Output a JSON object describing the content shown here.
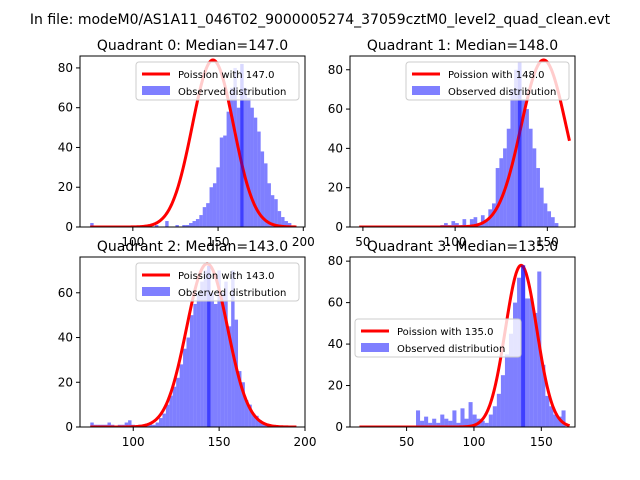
{
  "figure": {
    "suptitle": "In file: modeM0/AS1A11_046T02_9000005274_37059cztM0_level2_quad_clean.evt"
  },
  "colors": {
    "hist": "#0000ff",
    "curve": "#ff0000"
  },
  "chart_data": [
    {
      "type": "bar",
      "title": "Quadrant 0: Median=147.0",
      "xlim": [
        69,
        201
      ],
      "ylim": [
        0,
        86
      ],
      "xticks": [
        100,
        150,
        200
      ],
      "yticks": [
        0,
        20,
        40,
        60,
        80
      ],
      "legend": {
        "position": "top-right",
        "entries": [
          "Poission with 147.0",
          "Observed distribution"
        ]
      },
      "hist": {
        "x0": 75,
        "width": 2,
        "values": [
          2,
          0,
          0,
          0,
          0,
          0,
          0,
          0,
          0,
          0,
          0,
          0,
          0,
          0,
          0,
          0,
          0,
          0,
          0,
          1,
          0,
          0,
          3,
          0,
          0,
          1,
          0,
          1,
          1,
          2,
          3,
          4,
          6,
          10,
          12,
          20,
          22,
          30,
          45,
          46,
          58,
          70,
          80,
          60,
          82,
          70,
          65,
          60,
          55,
          48,
          38,
          32,
          22,
          16,
          14,
          8,
          5,
          3,
          2,
          0,
          0
        ],
        "highlight": {
          "index": 44,
          "value": 82
        }
      },
      "curve": {
        "lambda": 147.0,
        "peak": 84,
        "x": [
          75,
          196
        ]
      }
    },
    {
      "type": "bar",
      "title": "Quadrant 1: Median=148.0",
      "xlim": [
        43,
        165
      ],
      "ylim": [
        0,
        87
      ],
      "xticks": [
        50,
        100,
        150
      ],
      "yticks": [
        0,
        20,
        40,
        60,
        80
      ],
      "legend": {
        "position": "top-right",
        "entries": [
          "Poission with 148.0",
          "Observed distribution"
        ]
      },
      "hist": {
        "x0": 48,
        "width": 2,
        "values": [
          0,
          0,
          0,
          0,
          0,
          0,
          0,
          0,
          0,
          0,
          0,
          0,
          0,
          0,
          0,
          0,
          0,
          0,
          0,
          0,
          0,
          0,
          1,
          2,
          1,
          3,
          2,
          1,
          4,
          0,
          4,
          5,
          2,
          6,
          3,
          9,
          12,
          30,
          35,
          40,
          50,
          70,
          80,
          84,
          65,
          60,
          50,
          40,
          30,
          20,
          12,
          8,
          5,
          2
        ],
        "highlight": {
          "index": 43,
          "value": 84
        }
      },
      "curve": {
        "lambda": 148.0,
        "peak": 85,
        "x": [
          48,
          162
        ]
      }
    },
    {
      "type": "bar",
      "title": "Quadrant 2: Median=143.0",
      "xlim": [
        69,
        200
      ],
      "ylim": [
        0,
        76
      ],
      "xticks": [
        100,
        150,
        200
      ],
      "yticks": [
        0,
        20,
        40,
        60
      ],
      "legend": {
        "position": "top-right",
        "entries": [
          "Poission with 143.0",
          "Observed distribution"
        ]
      },
      "hist": {
        "x0": 75,
        "width": 2,
        "values": [
          2,
          1,
          1,
          1,
          1,
          2,
          1,
          0,
          1,
          1,
          2,
          3,
          1,
          0,
          1,
          0,
          1,
          2,
          1,
          2,
          4,
          6,
          10,
          14,
          18,
          22,
          28,
          35,
          40,
          50,
          55,
          60,
          65,
          70,
          72,
          60,
          55,
          70,
          60,
          65,
          45,
          70,
          48,
          25,
          20,
          12,
          10,
          6,
          5,
          3,
          2,
          1,
          1,
          0,
          0,
          0,
          0,
          0,
          0,
          0
        ],
        "highlight": {
          "index": 34,
          "value": 72
        }
      },
      "curve": {
        "lambda": 143.0,
        "peak": 73,
        "x": [
          75,
          195
        ]
      }
    },
    {
      "type": "bar",
      "title": "Quadrant 3: Median=135.0",
      "xlim": [
        8,
        175
      ],
      "ylim": [
        0,
        82
      ],
      "xticks": [
        50,
        100,
        150
      ],
      "yticks": [
        0,
        20,
        40,
        60,
        80
      ],
      "legend": {
        "position": "left",
        "entries": [
          "Poission with 135.0",
          "Observed distribution"
        ]
      },
      "hist": {
        "x0": 15,
        "width": 3,
        "values": [
          0,
          0,
          0,
          0,
          0,
          0,
          0,
          0,
          0,
          0,
          0,
          0,
          0,
          0,
          8,
          3,
          5,
          2,
          4,
          2,
          6,
          4,
          3,
          8,
          2,
          9,
          4,
          12,
          6,
          4,
          3,
          2,
          6,
          10,
          16,
          25,
          35,
          45,
          60,
          72,
          78,
          62,
          62,
          55,
          75,
          30,
          15,
          10,
          6,
          5,
          8,
          0,
          0,
          0
        ],
        "highlight": {
          "index": 40,
          "value": 78
        }
      },
      "curve": {
        "lambda": 135.0,
        "peak": 78,
        "x": [
          15,
          171
        ]
      }
    }
  ]
}
